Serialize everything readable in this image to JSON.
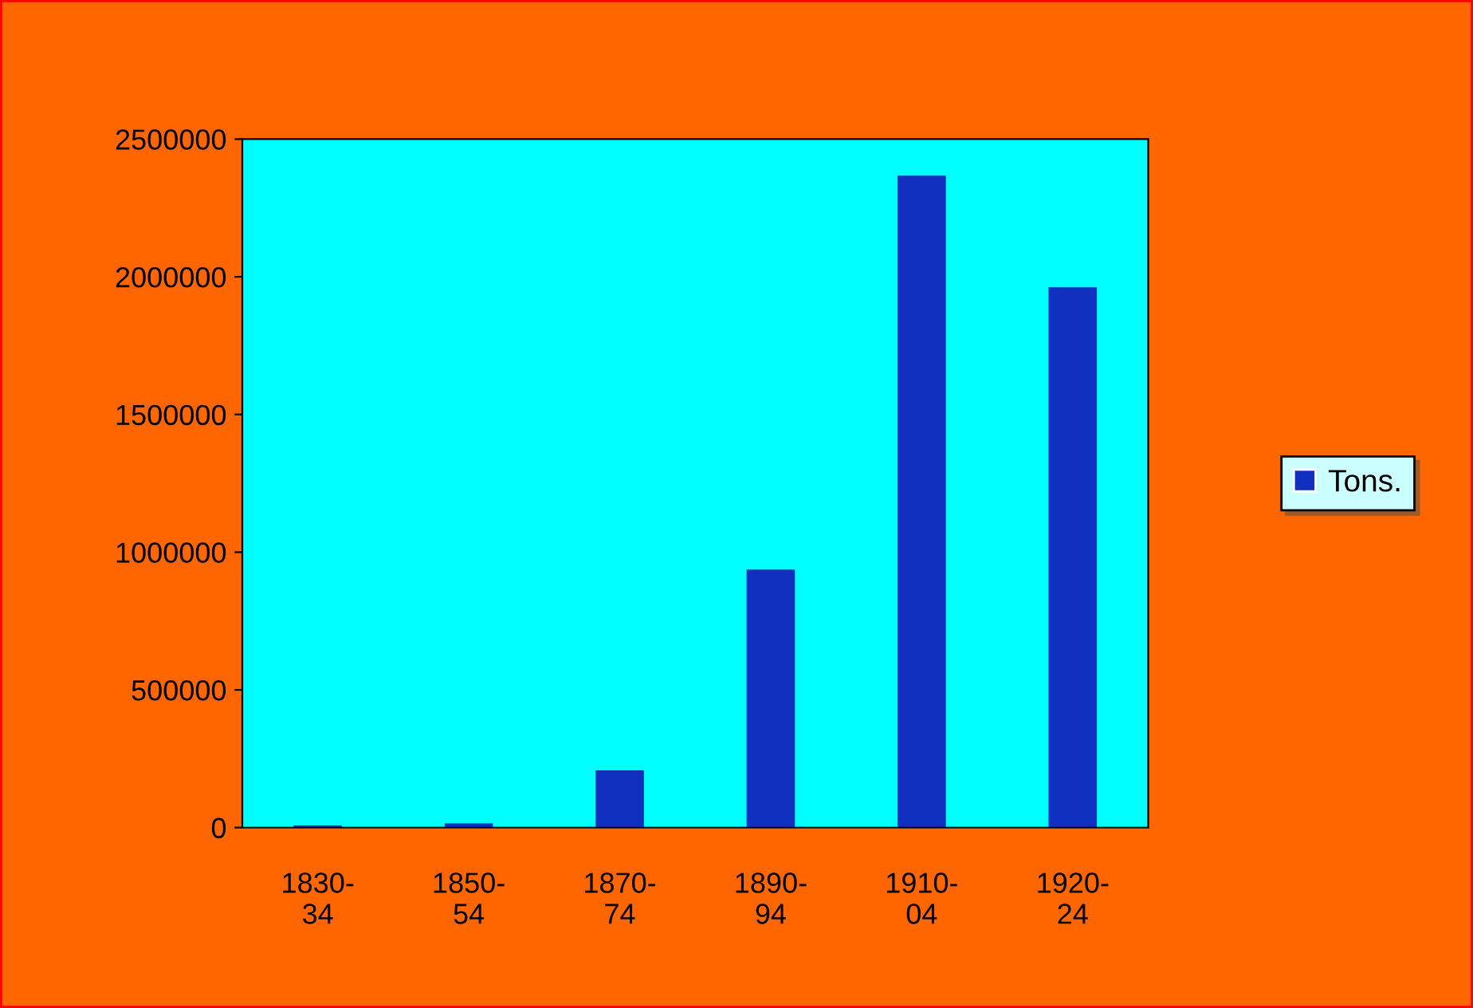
{
  "chart_data": {
    "type": "bar",
    "categories": [
      "1830-\n34",
      "1850-\n54",
      "1870-\n74",
      "1890-\n94",
      "1910-\n04",
      "1920-\n24"
    ],
    "series": [
      {
        "name": "Tons.",
        "color": "#1030c0",
        "values": [
          8000,
          15000,
          208000,
          937000,
          2367000,
          1962000
        ]
      }
    ],
    "ylim": [
      0,
      2500000
    ],
    "yticks": [
      0,
      500000,
      1000000,
      1500000,
      2000000,
      2500000
    ],
    "grid": false,
    "legend": "right"
  }
}
